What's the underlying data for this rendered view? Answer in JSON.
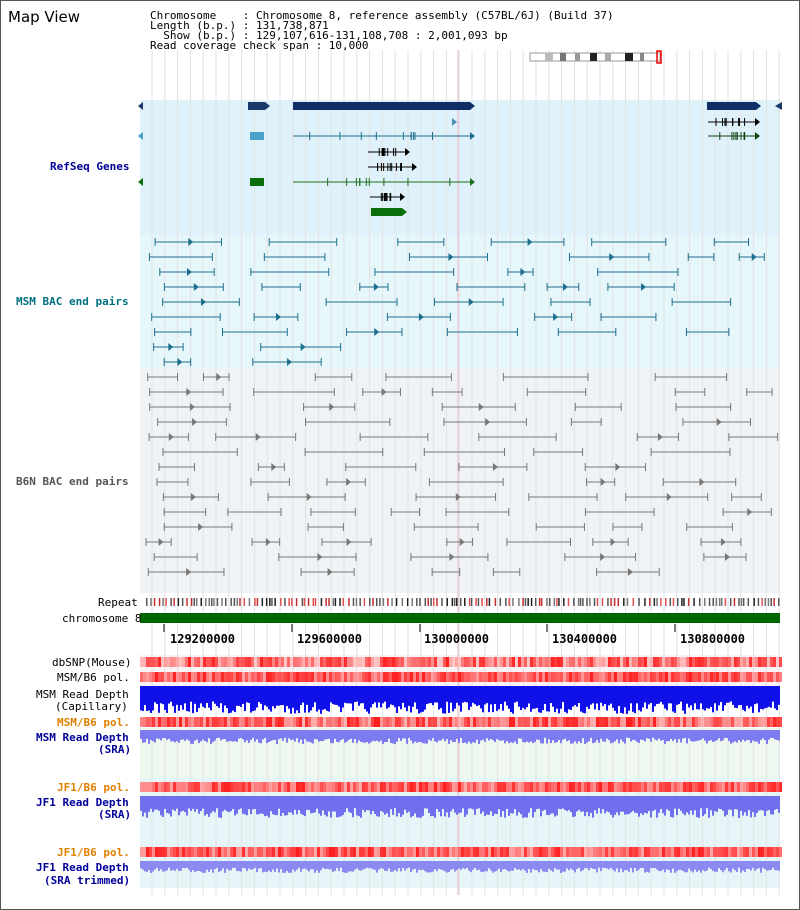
{
  "title": "Map View",
  "info": {
    "chromosome": "Chromosome    : Chromosome 8, reference assembly (C57BL/6J) (Build 37)",
    "length": "Length (b.p.) : 131,738,871",
    "show": "  Show (b.p.) : 129,107,616-131,108,708 : 2,001,093 bp",
    "span": "Read coverage check span : 10,000"
  },
  "tracks": {
    "refseq": "RefSeq Genes",
    "msm_bac": "MSM BAC end pairs",
    "b6n_bac": "B6N BAC end pairs",
    "repeat": "Repeat",
    "chromosome": "chromosome 8",
    "dbsnp": "dbSNP(Mouse)",
    "msm_b6_pol": "MSM/B6 pol.",
    "msm_read_depth": "MSM Read Depth",
    "capillary": "(Capillary)",
    "msm_b6_pol2": "MSM/B6 pol.",
    "msm_read_depth_sra": "MSM Read Depth",
    "sra": "(SRA)",
    "jf1_b6_pol": "JF1/B6 pol.",
    "jf1_read_depth": "JF1 Read Depth",
    "sra2": "(SRA)",
    "jf1_b6_pol2": "JF1/B6 pol.",
    "jf1_read_depth2": "JF1 Read Depth",
    "sra_trimmed": "(SRA trimmed)"
  },
  "ruler": [
    "129200000",
    "129600000",
    "130000000",
    "130400000",
    "130800000"
  ],
  "colors": {
    "refseq_bg": "#dff2fb",
    "msm_bg": "#e6f7fb",
    "b6n_bg": "#f0f3f6",
    "chromosome": "#006600",
    "refseq_label": "#000099",
    "msm_label": "#007080",
    "b6n_label": "#555555",
    "orange_label": "#e08000",
    "blue_label": "#000099"
  }
}
